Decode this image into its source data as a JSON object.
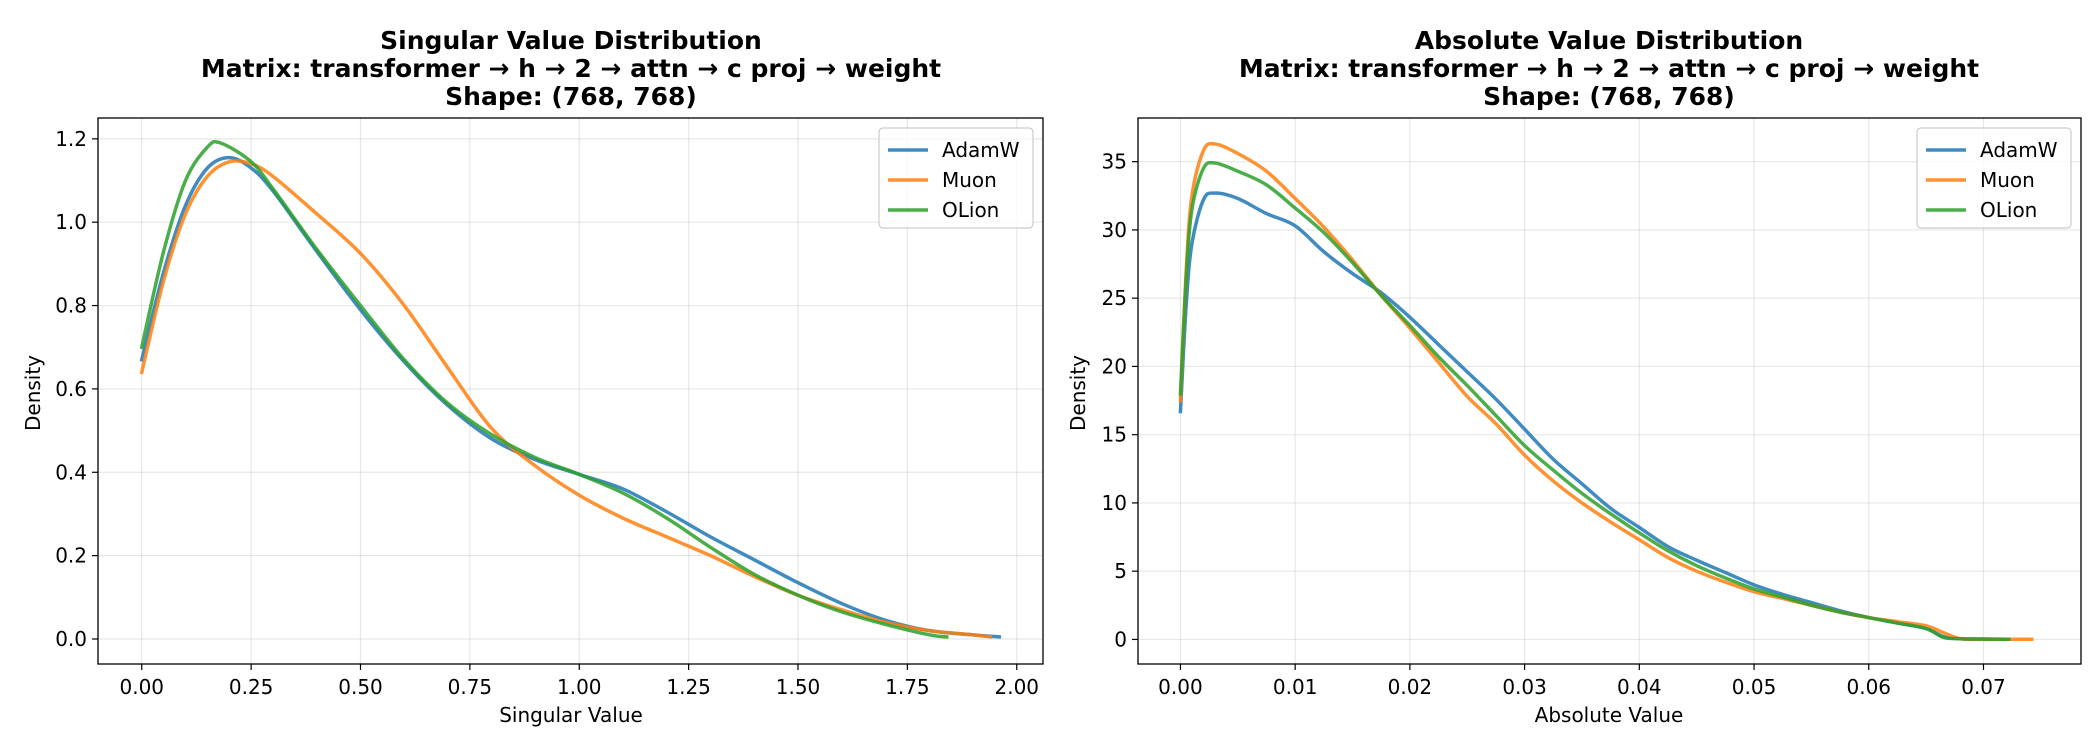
{
  "chart_data": [
    {
      "type": "line",
      "title": [
        "Singular Value Distribution",
        "Matrix: transformer → h → 2 → attn → c proj → weight",
        "Shape: (768, 768)"
      ],
      "xlabel": "Singular Value",
      "ylabel": "Density",
      "xlim": [
        -0.1,
        2.06
      ],
      "ylim": [
        -0.06,
        1.25
      ],
      "xticks": [
        0.0,
        0.25,
        0.5,
        0.75,
        1.0,
        1.25,
        1.5,
        1.75,
        2.0
      ],
      "xtick_labels": [
        "0.00",
        "0.25",
        "0.50",
        "0.75",
        "1.00",
        "1.25",
        "1.50",
        "1.75",
        "2.00"
      ],
      "yticks": [
        0.0,
        0.2,
        0.4,
        0.6,
        0.8,
        1.0,
        1.2
      ],
      "ytick_labels": [
        "0.0",
        "0.2",
        "0.4",
        "0.6",
        "0.8",
        "1.0",
        "1.2"
      ],
      "grid": true,
      "legend": "top-right",
      "series": [
        {
          "name": "AdamW",
          "color": "#1f77b4",
          "points": [
            [
              0.0,
              0.67
            ],
            [
              0.05,
              0.88
            ],
            [
              0.1,
              1.04
            ],
            [
              0.15,
              1.13
            ],
            [
              0.2,
              1.155
            ],
            [
              0.25,
              1.13
            ],
            [
              0.3,
              1.075
            ],
            [
              0.4,
              0.93
            ],
            [
              0.5,
              0.79
            ],
            [
              0.6,
              0.665
            ],
            [
              0.7,
              0.56
            ],
            [
              0.8,
              0.48
            ],
            [
              0.9,
              0.43
            ],
            [
              1.0,
              0.395
            ],
            [
              1.1,
              0.36
            ],
            [
              1.2,
              0.305
            ],
            [
              1.3,
              0.245
            ],
            [
              1.4,
              0.19
            ],
            [
              1.5,
              0.135
            ],
            [
              1.6,
              0.085
            ],
            [
              1.7,
              0.045
            ],
            [
              1.8,
              0.02
            ],
            [
              1.9,
              0.01
            ],
            [
              1.96,
              0.005
            ]
          ]
        },
        {
          "name": "Muon",
          "color": "#ff7f0e",
          "points": [
            [
              0.0,
              0.64
            ],
            [
              0.05,
              0.86
            ],
            [
              0.1,
              1.02
            ],
            [
              0.15,
              1.11
            ],
            [
              0.2,
              1.145
            ],
            [
              0.25,
              1.14
            ],
            [
              0.3,
              1.11
            ],
            [
              0.4,
              1.02
            ],
            [
              0.5,
              0.925
            ],
            [
              0.6,
              0.8
            ],
            [
              0.7,
              0.65
            ],
            [
              0.8,
              0.505
            ],
            [
              0.9,
              0.415
            ],
            [
              1.0,
              0.345
            ],
            [
              1.1,
              0.29
            ],
            [
              1.2,
              0.245
            ],
            [
              1.3,
              0.2
            ],
            [
              1.4,
              0.15
            ],
            [
              1.5,
              0.105
            ],
            [
              1.6,
              0.07
            ],
            [
              1.7,
              0.04
            ],
            [
              1.8,
              0.02
            ],
            [
              1.9,
              0.01
            ],
            [
              1.94,
              0.005
            ]
          ]
        },
        {
          "name": "OLion",
          "color": "#2ca02c",
          "points": [
            [
              0.0,
              0.7
            ],
            [
              0.05,
              0.93
            ],
            [
              0.1,
              1.1
            ],
            [
              0.15,
              1.18
            ],
            [
              0.18,
              1.19
            ],
            [
              0.25,
              1.145
            ],
            [
              0.3,
              1.08
            ],
            [
              0.4,
              0.935
            ],
            [
              0.5,
              0.8
            ],
            [
              0.6,
              0.67
            ],
            [
              0.7,
              0.565
            ],
            [
              0.8,
              0.49
            ],
            [
              0.9,
              0.435
            ],
            [
              1.0,
              0.395
            ],
            [
              1.1,
              0.35
            ],
            [
              1.2,
              0.29
            ],
            [
              1.3,
              0.22
            ],
            [
              1.4,
              0.155
            ],
            [
              1.5,
              0.105
            ],
            [
              1.6,
              0.065
            ],
            [
              1.7,
              0.035
            ],
            [
              1.8,
              0.01
            ],
            [
              1.84,
              0.005
            ]
          ]
        }
      ]
    },
    {
      "type": "line",
      "title": [
        "Absolute Value Distribution",
        "Matrix: transformer → h → 2 → attn → c proj → weight",
        "Shape: (768, 768)"
      ],
      "xlabel": "Absolute Value",
      "ylabel": "Density",
      "xlim": [
        -0.0037,
        0.0785
      ],
      "ylim": [
        -1.8,
        38.2
      ],
      "xticks": [
        0.0,
        0.01,
        0.02,
        0.03,
        0.04,
        0.05,
        0.06,
        0.07
      ],
      "xtick_labels": [
        "0.00",
        "0.01",
        "0.02",
        "0.03",
        "0.04",
        "0.05",
        "0.06",
        "0.07"
      ],
      "yticks": [
        0,
        5,
        10,
        15,
        20,
        25,
        30,
        35
      ],
      "ytick_labels": [
        "0",
        "5",
        "10",
        "15",
        "20",
        "25",
        "30",
        "35"
      ],
      "grid": true,
      "legend": "top-right",
      "series": [
        {
          "name": "AdamW",
          "color": "#1f77b4",
          "points": [
            [
              0.0,
              16.7
            ],
            [
              0.0005,
              24.5
            ],
            [
              0.001,
              29.0
            ],
            [
              0.002,
              32.2
            ],
            [
              0.003,
              32.7
            ],
            [
              0.005,
              32.3
            ],
            [
              0.0075,
              31.2
            ],
            [
              0.01,
              30.3
            ],
            [
              0.0125,
              28.4
            ],
            [
              0.015,
              26.8
            ],
            [
              0.0175,
              25.4
            ],
            [
              0.02,
              23.6
            ],
            [
              0.0225,
              21.6
            ],
            [
              0.025,
              19.6
            ],
            [
              0.0275,
              17.6
            ],
            [
              0.03,
              15.4
            ],
            [
              0.0325,
              13.2
            ],
            [
              0.035,
              11.4
            ],
            [
              0.0375,
              9.6
            ],
            [
              0.04,
              8.2
            ],
            [
              0.0425,
              6.8
            ],
            [
              0.045,
              5.8
            ],
            [
              0.0475,
              4.9
            ],
            [
              0.05,
              4.0
            ],
            [
              0.0525,
              3.3
            ],
            [
              0.055,
              2.7
            ],
            [
              0.0575,
              2.1
            ],
            [
              0.06,
              1.6
            ],
            [
              0.0625,
              1.2
            ],
            [
              0.065,
              0.8
            ],
            [
              0.0665,
              0.2
            ],
            [
              0.068,
              0.05
            ],
            [
              0.07,
              0.03
            ],
            [
              0.0722,
              0.01
            ]
          ]
        },
        {
          "name": "Muon",
          "color": "#ff7f0e",
          "points": [
            [
              0.0,
              17.5
            ],
            [
              0.0005,
              27.0
            ],
            [
              0.001,
              32.5
            ],
            [
              0.002,
              35.8
            ],
            [
              0.003,
              36.3
            ],
            [
              0.005,
              35.6
            ],
            [
              0.0075,
              34.3
            ],
            [
              0.01,
              32.3
            ],
            [
              0.0125,
              30.2
            ],
            [
              0.015,
              27.8
            ],
            [
              0.0175,
              25.2
            ],
            [
              0.02,
              22.8
            ],
            [
              0.0225,
              20.3
            ],
            [
              0.025,
              17.8
            ],
            [
              0.0275,
              15.8
            ],
            [
              0.03,
              13.5
            ],
            [
              0.0325,
              11.6
            ],
            [
              0.035,
              10.0
            ],
            [
              0.0375,
              8.6
            ],
            [
              0.04,
              7.3
            ],
            [
              0.0425,
              6.0
            ],
            [
              0.045,
              5.0
            ],
            [
              0.0475,
              4.2
            ],
            [
              0.05,
              3.5
            ],
            [
              0.0525,
              3.0
            ],
            [
              0.055,
              2.5
            ],
            [
              0.0575,
              2.0
            ],
            [
              0.06,
              1.6
            ],
            [
              0.0625,
              1.3
            ],
            [
              0.065,
              1.0
            ],
            [
              0.0665,
              0.5
            ],
            [
              0.068,
              0.05
            ],
            [
              0.07,
              0.02
            ],
            [
              0.0742,
              0.01
            ]
          ]
        },
        {
          "name": "OLion",
          "color": "#2ca02c",
          "points": [
            [
              0.0,
              18.0
            ],
            [
              0.0005,
              26.5
            ],
            [
              0.001,
              31.5
            ],
            [
              0.002,
              34.5
            ],
            [
              0.003,
              34.9
            ],
            [
              0.005,
              34.3
            ],
            [
              0.0075,
              33.3
            ],
            [
              0.01,
              31.6
            ],
            [
              0.0125,
              29.8
            ],
            [
              0.015,
              27.6
            ],
            [
              0.0175,
              25.2
            ],
            [
              0.02,
              23.0
            ],
            [
              0.0225,
              20.7
            ],
            [
              0.025,
              18.6
            ],
            [
              0.0275,
              16.4
            ],
            [
              0.03,
              14.2
            ],
            [
              0.0325,
              12.4
            ],
            [
              0.035,
              10.7
            ],
            [
              0.0375,
              9.2
            ],
            [
              0.04,
              7.8
            ],
            [
              0.0425,
              6.5
            ],
            [
              0.045,
              5.4
            ],
            [
              0.0475,
              4.5
            ],
            [
              0.05,
              3.7
            ],
            [
              0.0525,
              3.1
            ],
            [
              0.055,
              2.5
            ],
            [
              0.0575,
              2.0
            ],
            [
              0.06,
              1.6
            ],
            [
              0.0625,
              1.2
            ],
            [
              0.065,
              0.8
            ],
            [
              0.0665,
              0.15
            ],
            [
              0.068,
              0.05
            ],
            [
              0.07,
              0.02
            ],
            [
              0.0722,
              0.01
            ]
          ]
        }
      ]
    }
  ]
}
